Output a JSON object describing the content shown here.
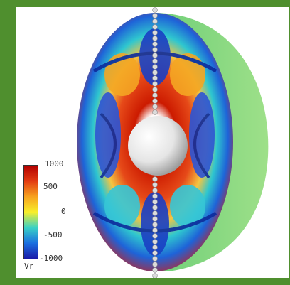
{
  "colorbar": {
    "ticks": [
      "1000",
      "500",
      "0",
      "-500",
      "-1000"
    ],
    "variable": "Vr",
    "stops": [
      "#b30000",
      "#e23b12",
      "#f7a21f",
      "#f7ef2b",
      "#39d1c5",
      "#1a6fe0",
      "#1a1aa8"
    ]
  },
  "colors": {
    "frame": "#4f8f2e",
    "shell_outer": "#7fd07a",
    "core": "#e8e8e8"
  }
}
